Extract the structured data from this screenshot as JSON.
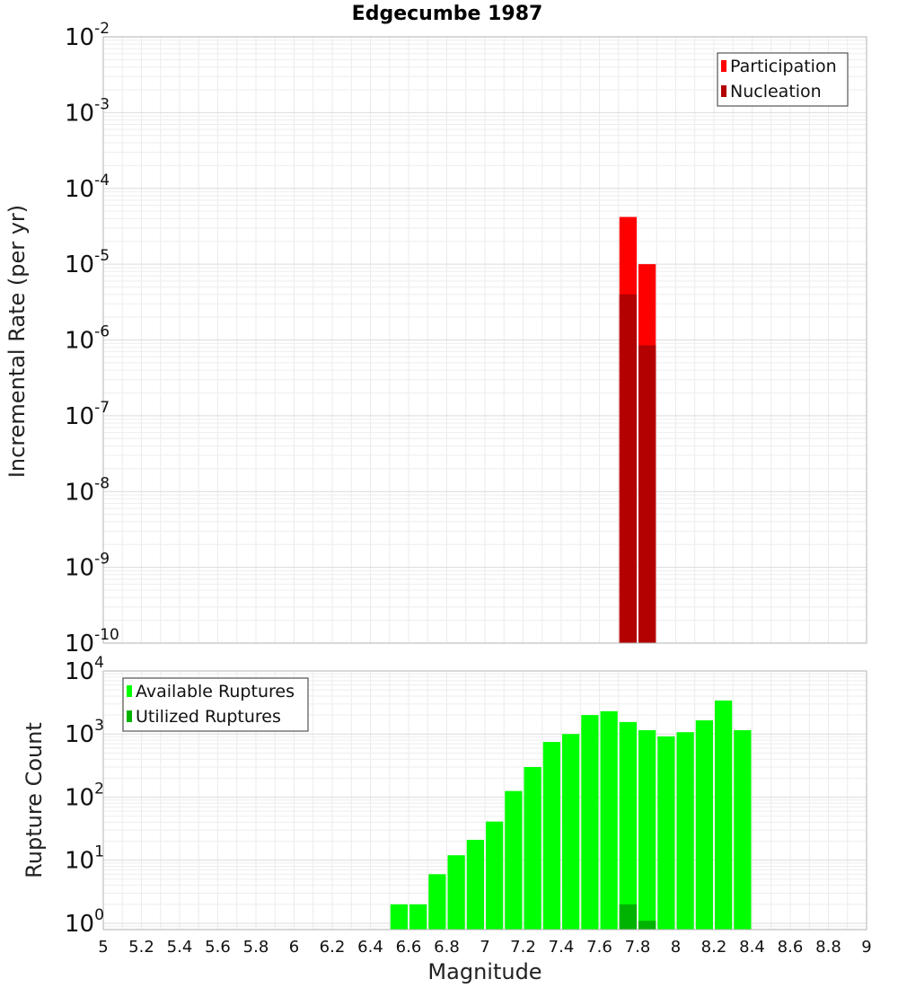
{
  "chart_data": [
    {
      "type": "bar",
      "title": "Edgecumbe 1987",
      "ylabel": "Incremental Rate (per yr)",
      "yscale": "log",
      "ylim_exponents": [
        -10,
        -2
      ],
      "xlim": [
        5,
        9
      ],
      "grid": true,
      "legend_position": "top-right",
      "bar_width": 0.1,
      "series": [
        {
          "name": "Participation",
          "color": "#ff0000",
          "x": [
            7.75,
            7.85
          ],
          "values": [
            4.2e-05,
            1e-05
          ]
        },
        {
          "name": "Nucleation",
          "color": "#b30000",
          "x": [
            7.75,
            7.85
          ],
          "values": [
            4e-06,
            8.5e-07
          ]
        }
      ],
      "ytick_labels": [
        {
          "base": "10",
          "exp": "-10"
        },
        {
          "base": "10",
          "exp": "-9"
        },
        {
          "base": "10",
          "exp": "-8"
        },
        {
          "base": "10",
          "exp": "-7"
        },
        {
          "base": "10",
          "exp": "-6"
        },
        {
          "base": "10",
          "exp": "-5"
        },
        {
          "base": "10",
          "exp": "-4"
        },
        {
          "base": "10",
          "exp": "-3"
        },
        {
          "base": "10",
          "exp": "-2"
        }
      ]
    },
    {
      "type": "bar",
      "ylabel": "Rupture Count",
      "xlabel": "Magnitude",
      "yscale": "log",
      "ylim_exponents": [
        -0.1,
        4
      ],
      "xlim": [
        5,
        9
      ],
      "grid": true,
      "legend_position": "top-left",
      "bar_width": 0.1,
      "series": [
        {
          "name": "Available Ruptures",
          "color": "#00ff00",
          "x": [
            6.55,
            6.65,
            6.75,
            6.85,
            6.95,
            7.05,
            7.15,
            7.25,
            7.35,
            7.45,
            7.55,
            7.65,
            7.75,
            7.85,
            7.95,
            8.05,
            8.15,
            8.25,
            8.35
          ],
          "values": [
            2,
            2,
            6,
            12,
            21,
            41,
            125,
            300,
            750,
            1000,
            2000,
            2300,
            1550,
            1150,
            920,
            1070,
            1650,
            3400,
            1150
          ]
        },
        {
          "name": "Utilized Ruptures",
          "color": "#00b300",
          "x": [
            7.75,
            7.85
          ],
          "values": [
            2,
            1.1
          ]
        }
      ],
      "ytick_labels": [
        {
          "base": "10",
          "exp": "0"
        },
        {
          "base": "10",
          "exp": "1"
        },
        {
          "base": "10",
          "exp": "2"
        },
        {
          "base": "10",
          "exp": "3"
        },
        {
          "base": "10",
          "exp": "4"
        }
      ],
      "xtick_labels": [
        "5",
        "5.2",
        "5.4",
        "5.6",
        "5.8",
        "6",
        "6.2",
        "6.4",
        "6.6",
        "6.8",
        "7",
        "7.2",
        "7.4",
        "7.6",
        "7.8",
        "8",
        "8.2",
        "8.4",
        "8.6",
        "8.8",
        "9"
      ]
    }
  ]
}
